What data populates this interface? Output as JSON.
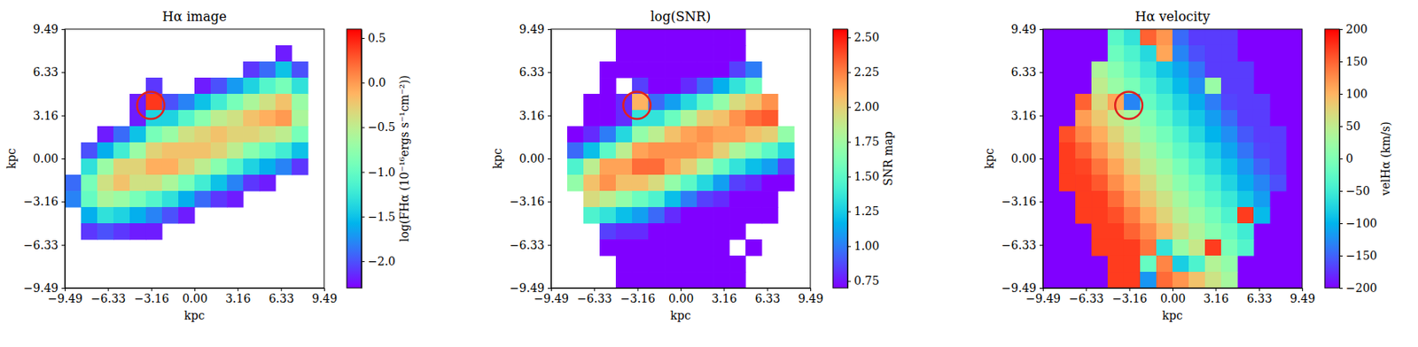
{
  "chart_data": [
    {
      "type": "heatmap",
      "title": "Hα image",
      "xlabel": "kpc",
      "ylabel": "kpc",
      "color": "#ffffff",
      "xlim": [
        -9.49,
        9.49
      ],
      "ylim": [
        -9.49,
        9.49
      ],
      "xticks": [
        {
          "value": -9.49,
          "label": "−9.49"
        },
        {
          "value": -6.33,
          "label": "−6.33"
        },
        {
          "value": -3.16,
          "label": "−3.16"
        },
        {
          "value": 0,
          "label": "0.00"
        },
        3.16,
        6.33,
        9.49
      ],
      "yticks": [
        {
          "value": -9.49,
          "label": "−9.49"
        },
        {
          "value": -6.33,
          "label": "−6.33"
        },
        {
          "value": -3.16,
          "label": "−3.16"
        },
        {
          "value": 0,
          "label": "0.00"
        },
        3.16,
        6.33,
        9.49
      ],
      "x": [
        -8.9,
        -7.71,
        -6.52,
        -5.34,
        -4.15,
        -2.97,
        -1.78,
        -0.59,
        0.59,
        1.78,
        2.97,
        4.15,
        5.34,
        6.52,
        7.71,
        8.9
      ],
      "y": [
        8.9,
        7.71,
        6.52,
        5.34,
        4.15,
        2.97,
        1.78,
        0.59,
        -0.59,
        -1.78,
        -2.97,
        -4.15,
        -5.34,
        -6.52,
        -7.71,
        -8.9
      ],
      "values": [
        [
          null,
          null,
          null,
          null,
          null,
          null,
          null,
          null,
          null,
          null,
          null,
          null,
          null,
          null,
          null,
          null
        ],
        [
          null,
          null,
          null,
          null,
          null,
          null,
          null,
          null,
          null,
          null,
          null,
          null,
          null,
          -2.2,
          null,
          null
        ],
        [
          null,
          null,
          null,
          null,
          null,
          null,
          null,
          null,
          null,
          null,
          null,
          -2.1,
          -1.9,
          -1.5,
          -2.0,
          null
        ],
        [
          null,
          null,
          null,
          null,
          null,
          -2.1,
          null,
          null,
          -2.2,
          -2.0,
          -1.7,
          -1.4,
          -1.1,
          -0.9,
          -1.3,
          null
        ],
        [
          null,
          null,
          null,
          null,
          -2.2,
          0.4,
          -2.0,
          -1.8,
          -1.5,
          -1.2,
          -0.9,
          -0.6,
          -0.4,
          -0.2,
          -0.7,
          null
        ],
        [
          null,
          null,
          null,
          null,
          -2.2,
          -1.4,
          -1.4,
          -1.1,
          -0.8,
          -0.5,
          -0.4,
          -0.2,
          -0.1,
          0.0,
          -0.6,
          null
        ],
        [
          null,
          null,
          -2.2,
          -1.9,
          -1.5,
          -0.9,
          -0.7,
          -0.4,
          -0.3,
          -0.2,
          -0.3,
          -0.3,
          -0.4,
          -0.5,
          -0.9,
          null
        ],
        [
          null,
          -2.0,
          -1.6,
          -1.2,
          -0.7,
          -0.3,
          -0.2,
          -0.2,
          -0.2,
          -0.3,
          -0.5,
          -0.8,
          -1.0,
          -1.2,
          -1.5,
          null
        ],
        [
          null,
          -1.3,
          -0.7,
          -0.3,
          -0.3,
          -0.1,
          -0.1,
          -0.3,
          -0.5,
          -0.8,
          -1.1,
          -1.4,
          -1.6,
          -1.8,
          -2.1,
          null
        ],
        [
          -1.9,
          -0.9,
          -0.4,
          -0.2,
          -0.4,
          -0.4,
          -0.6,
          -0.9,
          -1.2,
          -1.5,
          -1.8,
          -2.1,
          -2.2,
          null,
          null,
          null
        ],
        [
          -1.8,
          -1.0,
          -0.6,
          -0.7,
          -0.9,
          -1.1,
          -1.3,
          -1.6,
          -1.9,
          -2.1,
          -2.2,
          null,
          null,
          null,
          null,
          null
        ],
        [
          null,
          -1.6,
          -1.3,
          -1.4,
          -1.6,
          -1.8,
          -2.0,
          -2.2,
          null,
          null,
          null,
          null,
          null,
          null,
          null,
          null
        ],
        [
          null,
          -2.1,
          -2.0,
          -2.1,
          -2.2,
          -2.2,
          null,
          null,
          null,
          null,
          null,
          null,
          null,
          null,
          null,
          null
        ],
        [
          null,
          null,
          null,
          null,
          null,
          null,
          null,
          null,
          null,
          null,
          null,
          null,
          null,
          null,
          null,
          null
        ],
        [
          null,
          null,
          null,
          null,
          null,
          null,
          null,
          null,
          null,
          null,
          null,
          null,
          null,
          null,
          null,
          null
        ],
        [
          null,
          null,
          null,
          null,
          null,
          null,
          null,
          null,
          null,
          null,
          null,
          null,
          null,
          null,
          null,
          null
        ]
      ],
      "colorbar": {
        "label": "log(FHα (10⁻¹⁶ergs s⁻¹cm⁻²))",
        "lim": [
          -2.3,
          0.6
        ],
        "ticks": [
          0.5,
          {
            "value": 0,
            "label": "0.0"
          },
          {
            "value": -0.5,
            "label": "−0.5"
          },
          {
            "value": -1,
            "label": "−1.0"
          },
          {
            "value": -1.5,
            "label": "−1.5"
          },
          {
            "value": -2,
            "label": "−2.0"
          }
        ]
      },
      "circle": {
        "x": -3.2,
        "y": 3.9,
        "r": 1.0,
        "color": "#e0201e"
      }
    },
    {
      "type": "heatmap",
      "title": "log(SNR)",
      "xlabel": "kpc",
      "ylabel": "kpc",
      "color": "#ffffff",
      "xlim": [
        -9.49,
        9.49
      ],
      "ylim": [
        -9.49,
        9.49
      ],
      "xticks": [
        {
          "value": -9.49,
          "label": "−9.49"
        },
        {
          "value": -6.33,
          "label": "−6.33"
        },
        {
          "value": -3.16,
          "label": "−3.16"
        },
        {
          "value": 0,
          "label": "0.00"
        },
        3.16,
        6.33,
        9.49
      ],
      "yticks": [
        {
          "value": -9.49,
          "label": "−9.49"
        },
        {
          "value": -6.33,
          "label": "−6.33"
        },
        {
          "value": -3.16,
          "label": "−3.16"
        },
        {
          "value": 0,
          "label": "0.00"
        },
        3.16,
        6.33,
        9.49
      ],
      "x": [
        -8.9,
        -7.71,
        -6.52,
        -5.34,
        -4.15,
        -2.97,
        -1.78,
        -0.59,
        0.59,
        1.78,
        2.97,
        4.15,
        5.34,
        6.52,
        7.71,
        8.9
      ],
      "y": [
        8.9,
        7.71,
        6.52,
        5.34,
        4.15,
        2.97,
        1.78,
        0.59,
        -0.59,
        -1.78,
        -2.97,
        -4.15,
        -5.34,
        -6.52,
        -7.71,
        -8.9
      ],
      "values": [
        [
          null,
          null,
          null,
          null,
          0.7,
          0.7,
          0.7,
          0.7,
          0.7,
          0.7,
          0.7,
          0.7,
          null,
          null,
          null,
          null
        ],
        [
          null,
          null,
          null,
          null,
          0.7,
          0.7,
          0.7,
          0.7,
          0.7,
          0.7,
          0.7,
          0.7,
          null,
          null,
          null,
          null
        ],
        [
          null,
          null,
          null,
          0.7,
          0.7,
          0.7,
          0.7,
          0.7,
          0.7,
          0.7,
          0.7,
          0.85,
          1.0,
          null,
          null,
          null
        ],
        [
          null,
          null,
          null,
          0.7,
          null,
          0.85,
          0.7,
          0.7,
          0.8,
          0.95,
          1.15,
          1.35,
          1.55,
          null,
          null,
          null
        ],
        [
          null,
          null,
          0.7,
          0.7,
          0.8,
          2.1,
          0.95,
          1.1,
          1.3,
          1.5,
          1.7,
          1.95,
          2.05,
          2.2,
          null,
          null
        ],
        [
          null,
          null,
          0.7,
          0.7,
          0.8,
          1.35,
          1.35,
          1.55,
          1.8,
          2.0,
          2.05,
          2.2,
          2.3,
          2.35,
          null,
          null
        ],
        [
          null,
          0.7,
          0.8,
          1.0,
          1.3,
          1.7,
          1.85,
          2.05,
          2.15,
          2.2,
          2.15,
          2.15,
          2.05,
          2.0,
          1.7,
          null
        ],
        [
          null,
          0.95,
          1.2,
          1.5,
          1.85,
          2.15,
          2.2,
          2.2,
          2.2,
          2.15,
          2.0,
          1.8,
          1.65,
          1.5,
          1.3,
          null
        ],
        [
          null,
          1.45,
          1.85,
          2.15,
          2.15,
          2.3,
          2.3,
          2.15,
          2.0,
          1.8,
          1.55,
          1.35,
          1.2,
          1.1,
          0.85,
          null
        ],
        [
          null,
          1.7,
          2.05,
          2.2,
          2.05,
          2.05,
          1.95,
          1.7,
          1.5,
          1.3,
          1.1,
          0.85,
          0.8,
          0.7,
          0.7,
          null
        ],
        [
          null,
          null,
          1.95,
          1.85,
          1.7,
          1.55,
          1.45,
          1.2,
          1.0,
          0.85,
          0.8,
          0.7,
          0.7,
          0.7,
          null,
          null
        ],
        [
          null,
          null,
          1.45,
          1.35,
          1.2,
          1.1,
          0.95,
          0.8,
          0.7,
          0.7,
          0.7,
          0.7,
          0.7,
          0.7,
          null,
          null
        ],
        [
          null,
          null,
          null,
          0.85,
          0.8,
          0.8,
          0.7,
          0.7,
          0.7,
          0.7,
          0.7,
          0.7,
          null,
          null,
          null,
          null
        ],
        [
          null,
          null,
          null,
          0.7,
          0.7,
          0.7,
          0.7,
          0.7,
          0.7,
          0.7,
          0.7,
          null,
          0.7,
          null,
          null,
          null
        ],
        [
          null,
          null,
          null,
          null,
          0.7,
          0.7,
          0.7,
          0.7,
          0.7,
          0.7,
          0.7,
          0.7,
          null,
          null,
          null,
          null
        ],
        [
          null,
          null,
          null,
          null,
          0.7,
          0.7,
          0.7,
          0.7,
          0.7,
          0.7,
          0.7,
          0.7,
          null,
          null,
          null,
          null
        ]
      ],
      "colorbar": {
        "label": "SNR map",
        "lim": [
          0.7,
          2.56
        ],
        "ticks": [
          0.75,
          {
            "value": 1,
            "label": "1.00"
          },
          1.25,
          {
            "value": 1.5,
            "label": "1.50"
          },
          1.75,
          {
            "value": 2,
            "label": "2.00"
          },
          2.25,
          {
            "value": 2.5,
            "label": "2.50"
          }
        ]
      },
      "circle": {
        "x": -3.2,
        "y": 3.9,
        "r": 1.0,
        "color": "#e0201e"
      }
    },
    {
      "type": "heatmap",
      "title": "Hα velocity",
      "xlabel": "kpc",
      "ylabel": "kpc",
      "color": "#8000ff",
      "xlim": [
        -9.49,
        9.49
      ],
      "ylim": [
        -9.49,
        9.49
      ],
      "xticks": [
        {
          "value": -9.49,
          "label": "−9.49"
        },
        {
          "value": -6.33,
          "label": "−6.33"
        },
        {
          "value": -3.16,
          "label": "−3.16"
        },
        {
          "value": 0,
          "label": "0.00"
        },
        3.16,
        6.33,
        9.49
      ],
      "yticks": [
        {
          "value": -9.49,
          "label": "−9.49"
        },
        {
          "value": -6.33,
          "label": "−6.33"
        },
        {
          "value": -3.16,
          "label": "−3.16"
        },
        {
          "value": 0,
          "label": "0.00"
        },
        3.16,
        6.33,
        9.49
      ],
      "x": [
        -8.9,
        -7.71,
        -6.52,
        -5.34,
        -4.15,
        -2.97,
        -1.78,
        -0.59,
        0.59,
        1.78,
        2.97,
        4.15,
        5.34,
        6.52,
        7.71,
        8.9
      ],
      "y": [
        8.9,
        7.71,
        6.52,
        5.34,
        4.15,
        2.97,
        1.78,
        0.59,
        -0.59,
        -1.78,
        -2.97,
        -4.15,
        -5.34,
        -6.52,
        -7.71,
        -8.9
      ],
      "values": [
        [
          null,
          null,
          null,
          null,
          -30,
          -60,
          150,
          120,
          -145,
          -170,
          -170,
          -170,
          null,
          null,
          null,
          null
        ],
        [
          null,
          null,
          null,
          null,
          -15,
          -40,
          -70,
          110,
          -130,
          -160,
          -170,
          -170,
          null,
          null,
          null,
          null
        ],
        [
          null,
          null,
          null,
          35,
          5,
          -25,
          -55,
          -85,
          -110,
          -140,
          -170,
          -170,
          -170,
          null,
          null,
          null
        ],
        [
          null,
          null,
          null,
          50,
          20,
          -5,
          -35,
          -65,
          -95,
          -125,
          20,
          -170,
          -170,
          null,
          null,
          null
        ],
        [
          null,
          null,
          150,
          70,
          110,
          -130,
          -20,
          -45,
          -75,
          -105,
          -135,
          -165,
          -170,
          -170,
          null,
          null
        ],
        [
          null,
          null,
          115,
          85,
          55,
          30,
          0,
          -30,
          -60,
          -85,
          -115,
          -145,
          -170,
          -170,
          null,
          null
        ],
        [
          null,
          160,
          130,
          105,
          75,
          45,
          15,
          -10,
          -40,
          -70,
          -100,
          -125,
          -155,
          -170,
          -170,
          null
        ],
        [
          null,
          170,
          150,
          120,
          90,
          65,
          35,
          5,
          -25,
          -50,
          -80,
          -110,
          -140,
          -165,
          -170,
          null
        ],
        [
          null,
          170,
          165,
          140,
          110,
          80,
          50,
          25,
          -5,
          -35,
          -65,
          -90,
          -120,
          -150,
          -170,
          null
        ],
        [
          null,
          170,
          170,
          155,
          125,
          100,
          70,
          40,
          10,
          -15,
          -45,
          -75,
          -105,
          -130,
          -160,
          null
        ],
        [
          null,
          null,
          170,
          170,
          145,
          115,
          85,
          60,
          30,
          0,
          -30,
          -55,
          -85,
          -115,
          null,
          null
        ],
        [
          null,
          null,
          170,
          170,
          160,
          135,
          105,
          75,
          45,
          20,
          -10,
          -40,
          170,
          -95,
          null,
          null
        ],
        [
          null,
          null,
          null,
          170,
          170,
          150,
          125,
          95,
          65,
          35,
          5,
          -20,
          -50,
          null,
          null,
          null
        ],
        [
          null,
          null,
          null,
          170,
          170,
          170,
          140,
          -60,
          20,
          55,
          170,
          -5,
          -35,
          null,
          null,
          null
        ],
        [
          null,
          null,
          null,
          null,
          170,
          170,
          -20,
          130,
          -80,
          -40,
          40,
          15,
          null,
          null,
          null,
          null
        ],
        [
          null,
          null,
          null,
          null,
          170,
          170,
          -120,
          145,
          120,
          90,
          60,
          30,
          null,
          null,
          null,
          null
        ]
      ],
      "colorbar": {
        "label": "velHα (km/s)",
        "lim": [
          -200,
          200
        ],
        "ticks": [
          {
            "value": -200,
            "label": "−200"
          },
          {
            "value": -150,
            "label": "−150"
          },
          {
            "value": -100,
            "label": "−100"
          },
          {
            "value": -50,
            "label": "−50"
          },
          0,
          50,
          100,
          150,
          200
        ]
      },
      "circle": {
        "x": -3.2,
        "y": 3.9,
        "r": 1.0,
        "color": "#e0201e"
      }
    }
  ]
}
